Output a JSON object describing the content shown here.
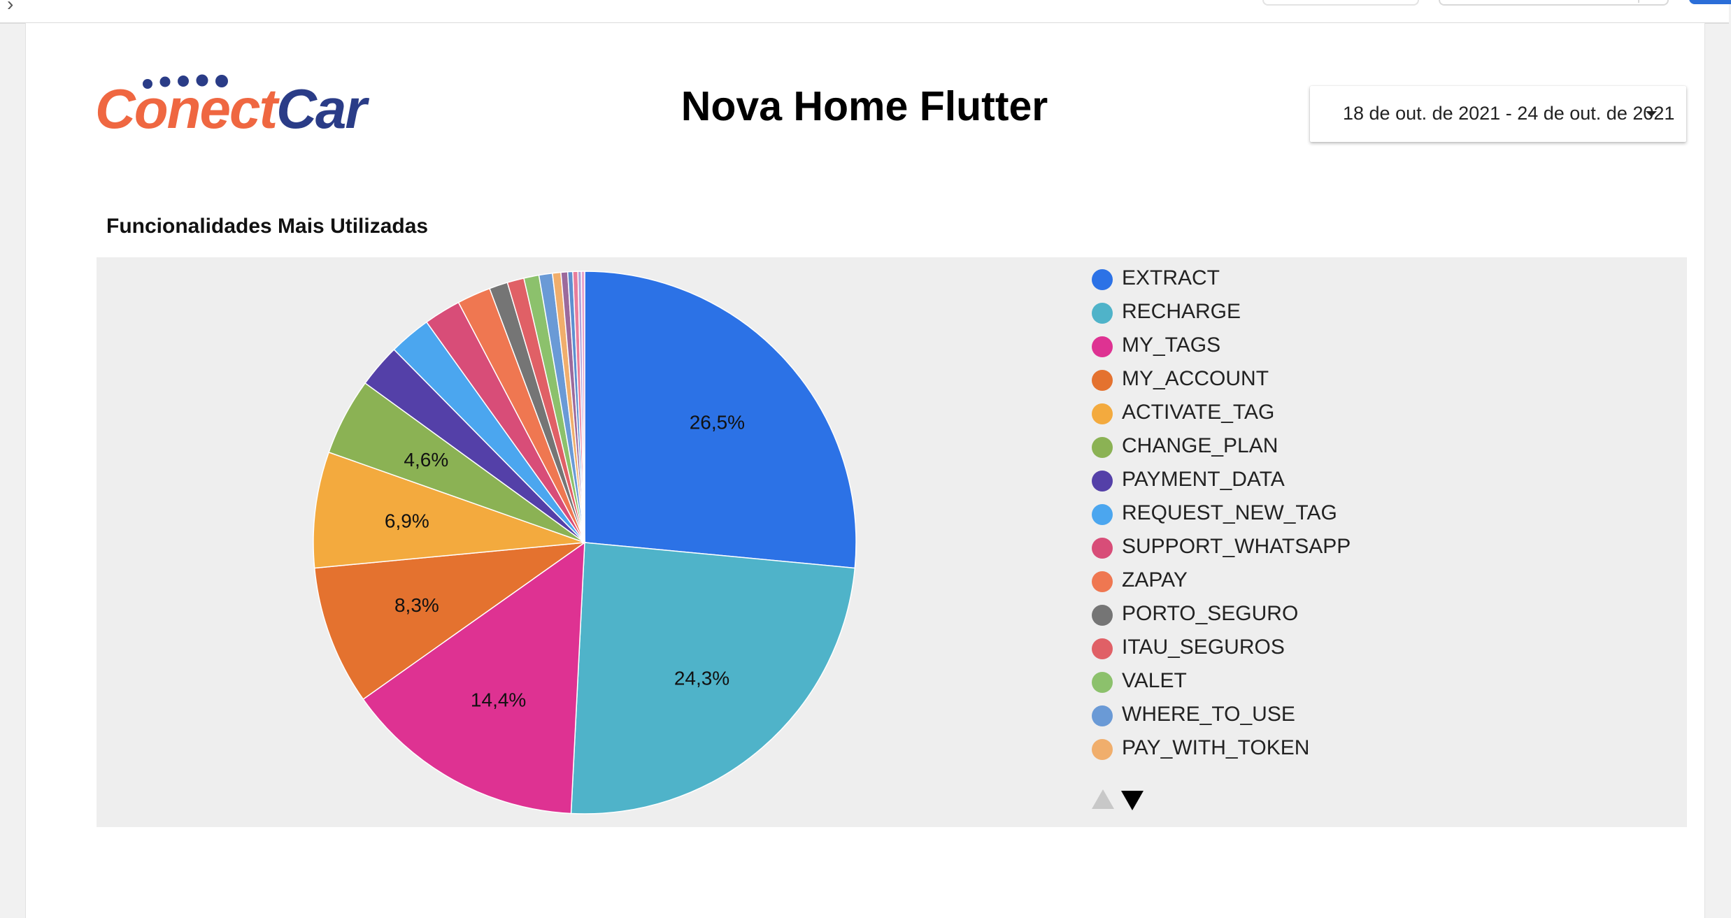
{
  "topbar": {},
  "logo": {
    "text_conect": "Conect",
    "text_car": "Car"
  },
  "page": {
    "title": "Nova Home Flutter"
  },
  "date_picker": {
    "value": "18 de out. de 2021 - 24 de out. de 2021"
  },
  "chart_data": {
    "type": "pie",
    "title": "Funcionalidades Mais Utilizadas",
    "slices": [
      {
        "label": "EXTRACT",
        "value": 26.5,
        "color": "#2c72e6",
        "data_label": "26,5%"
      },
      {
        "label": "RECHARGE",
        "value": 24.3,
        "color": "#4fb3c9",
        "data_label": "24,3%"
      },
      {
        "label": "MY_TAGS",
        "value": 14.4,
        "color": "#de3292",
        "data_label": "14,4%"
      },
      {
        "label": "MY_ACCOUNT",
        "value": 8.3,
        "color": "#e4722f",
        "data_label": "8,3%"
      },
      {
        "label": "ACTIVATE_TAG",
        "value": 6.9,
        "color": "#f3aa3e",
        "data_label": "6,9%"
      },
      {
        "label": "CHANGE_PLAN",
        "value": 4.6,
        "color": "#8bb254",
        "data_label": "4,6%"
      },
      {
        "label": "PAYMENT_DATA",
        "value": 2.6,
        "color": "#5440a8"
      },
      {
        "label": "REQUEST_NEW_TAG",
        "value": 2.5,
        "color": "#4ba6ef"
      },
      {
        "label": "SUPPORT_WHATSAPP",
        "value": 2.2,
        "color": "#d84d78"
      },
      {
        "label": "ZAPAY",
        "value": 2.0,
        "color": "#ef7751"
      },
      {
        "label": "PORTO_SEGURO",
        "value": 1.1,
        "color": "#757575"
      },
      {
        "label": "ITAU_SEGUROS",
        "value": 1.0,
        "color": "#e06066"
      },
      {
        "label": "VALET",
        "value": 0.9,
        "color": "#8cc16c"
      },
      {
        "label": "WHERE_TO_USE",
        "value": 0.8,
        "color": "#6a9ad6"
      },
      {
        "label": "PAY_WITH_TOKEN",
        "value": 0.5,
        "color": "#f0ae6c"
      },
      {
        "value": 0.4,
        "color": "#9c6a9c"
      },
      {
        "value": 0.3,
        "color": "#5e8fcf"
      },
      {
        "value": 0.3,
        "color": "#e97d9b"
      },
      {
        "value": 0.2,
        "color": "#b0a0d8"
      },
      {
        "value": 0.2,
        "color": "#e9a3c9"
      }
    ],
    "legend_visible_count": 15,
    "legend_placement": "right"
  }
}
